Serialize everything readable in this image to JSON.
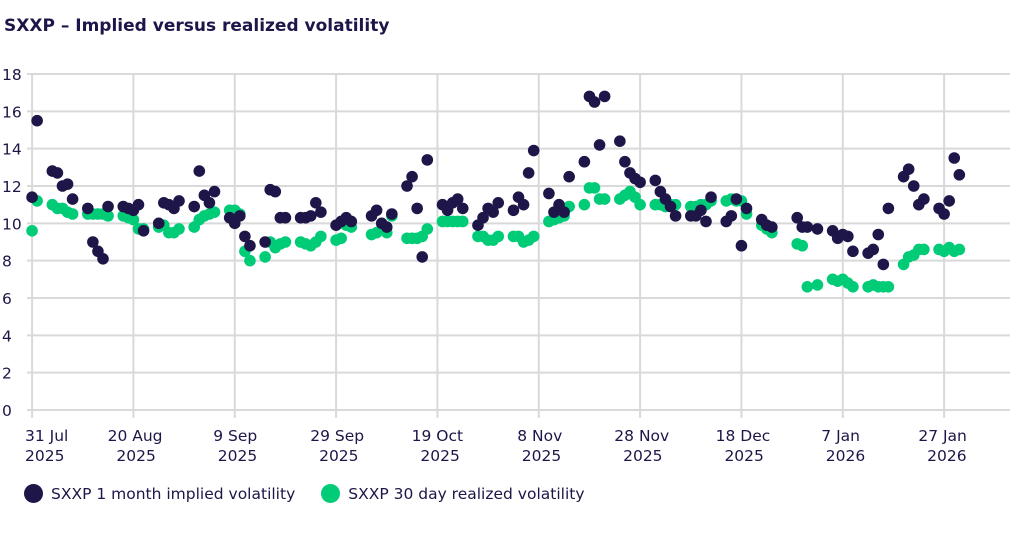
{
  "title": "SXXP – Implied versus realized volatility",
  "colors": {
    "implied": "#1e1548",
    "realized": "#00cc78",
    "grid": "#d9d9d9"
  },
  "chart_data": {
    "type": "scatter",
    "title": "SXXP – Implied versus realized volatility",
    "xlabel": "",
    "ylabel": "",
    "ylim": [
      0,
      18
    ],
    "xlim": [
      "2025-07-30",
      "2026-02-09"
    ],
    "grid": true,
    "legend_placement": "bottom-left",
    "y_ticks": [
      "0",
      "2",
      "4",
      "6",
      "8",
      "10",
      "12",
      "14",
      "16",
      "18"
    ],
    "x_ticks": [
      {
        "date": "2025-07-31",
        "line1": "31 Jul",
        "line2": "2025"
      },
      {
        "date": "2025-08-20",
        "line1": "20 Aug",
        "line2": "2025"
      },
      {
        "date": "2025-09-09",
        "line1": "9 Sep",
        "line2": "2025"
      },
      {
        "date": "2025-09-29",
        "line1": "29 Sep",
        "line2": "2025"
      },
      {
        "date": "2025-10-19",
        "line1": "19 Oct",
        "line2": "2025"
      },
      {
        "date": "2025-11-08",
        "line1": "8 Nov",
        "line2": "2025"
      },
      {
        "date": "2025-11-28",
        "line1": "28 Nov",
        "line2": "2025"
      },
      {
        "date": "2025-12-18",
        "line1": "18 Dec",
        "line2": "2025"
      },
      {
        "date": "2026-01-07",
        "line1": "7 Jan",
        "line2": "2026"
      },
      {
        "date": "2026-01-27",
        "line1": "27 Jan",
        "line2": "2026"
      }
    ],
    "x": [
      "2025-07-31",
      "2025-08-01",
      "2025-08-04",
      "2025-08-05",
      "2025-08-06",
      "2025-08-07",
      "2025-08-08",
      "2025-08-11",
      "2025-08-12",
      "2025-08-13",
      "2025-08-14",
      "2025-08-15",
      "2025-08-18",
      "2025-08-19",
      "2025-08-20",
      "2025-08-21",
      "2025-08-22",
      "2025-08-25",
      "2025-08-26",
      "2025-08-27",
      "2025-08-28",
      "2025-08-29",
      "2025-09-01",
      "2025-09-02",
      "2025-09-03",
      "2025-09-04",
      "2025-09-05",
      "2025-09-08",
      "2025-09-09",
      "2025-09-10",
      "2025-09-11",
      "2025-09-12",
      "2025-09-15",
      "2025-09-16",
      "2025-09-17",
      "2025-09-18",
      "2025-09-19",
      "2025-09-22",
      "2025-09-23",
      "2025-09-24",
      "2025-09-25",
      "2025-09-26",
      "2025-09-29",
      "2025-09-30",
      "2025-10-01",
      "2025-10-02",
      "2025-10-06",
      "2025-10-07",
      "2025-10-08",
      "2025-10-09",
      "2025-10-10",
      "2025-10-13",
      "2025-10-14",
      "2025-10-15",
      "2025-10-16",
      "2025-10-17",
      "2025-10-20",
      "2025-10-21",
      "2025-10-22",
      "2025-10-23",
      "2025-10-24",
      "2025-10-27",
      "2025-10-28",
      "2025-10-29",
      "2025-10-30",
      "2025-10-31",
      "2025-11-03",
      "2025-11-04",
      "2025-11-05",
      "2025-11-06",
      "2025-11-07",
      "2025-11-10",
      "2025-11-11",
      "2025-11-12",
      "2025-11-13",
      "2025-11-14",
      "2025-11-17",
      "2025-11-18",
      "2025-11-19",
      "2025-11-20",
      "2025-11-21",
      "2025-11-24",
      "2025-11-25",
      "2025-11-26",
      "2025-11-27",
      "2025-11-28",
      "2025-12-01",
      "2025-12-02",
      "2025-12-03",
      "2025-12-04",
      "2025-12-05",
      "2025-12-08",
      "2025-12-09",
      "2025-12-10",
      "2025-12-11",
      "2025-12-12",
      "2025-12-15",
      "2025-12-16",
      "2025-12-17",
      "2025-12-18",
      "2025-12-19",
      "2025-12-22",
      "2025-12-23",
      "2025-12-24",
      "2025-12-29",
      "2025-12-30",
      "2025-12-31",
      "2026-01-02",
      "2026-01-05",
      "2026-01-06",
      "2026-01-07",
      "2026-01-08",
      "2026-01-09",
      "2026-01-12",
      "2026-01-13",
      "2026-01-14",
      "2026-01-15",
      "2026-01-16",
      "2026-01-19",
      "2026-01-20",
      "2026-01-21",
      "2026-01-22",
      "2026-01-23",
      "2026-01-26",
      "2026-01-27",
      "2026-01-28",
      "2026-01-29",
      "2026-01-30"
    ],
    "series": [
      {
        "name": "SXXP 1 month implied volatility",
        "color": "#1e1548",
        "values": [
          11.4,
          15.5,
          12.8,
          12.7,
          12.0,
          12.1,
          11.3,
          10.8,
          9.0,
          8.5,
          8.1,
          10.9,
          10.9,
          10.8,
          10.7,
          11.0,
          9.6,
          10.0,
          11.1,
          11.0,
          10.8,
          11.2,
          10.9,
          12.8,
          11.5,
          11.1,
          11.7,
          10.3,
          10.0,
          10.4,
          9.3,
          8.8,
          9.0,
          11.8,
          11.7,
          10.3,
          10.3,
          10.3,
          10.3,
          10.4,
          11.1,
          10.6,
          9.9,
          10.1,
          10.3,
          10.1,
          10.4,
          10.7,
          10.0,
          9.8,
          10.5,
          12.0,
          12.5,
          10.8,
          8.2,
          13.4,
          11.0,
          10.7,
          11.1,
          11.3,
          10.8,
          9.9,
          10.3,
          10.8,
          10.6,
          11.1,
          10.7,
          11.4,
          11.0,
          12.7,
          13.9,
          11.6,
          10.6,
          11.0,
          10.6,
          12.5,
          13.3,
          16.8,
          16.5,
          14.2,
          16.8,
          14.4,
          13.3,
          12.7,
          12.4,
          12.2,
          12.3,
          11.7,
          11.3,
          10.9,
          10.4,
          10.4,
          10.4,
          10.7,
          10.1,
          11.4,
          10.1,
          10.4,
          11.3,
          8.8,
          10.8,
          10.2,
          9.9,
          9.8,
          10.3,
          9.8,
          9.8,
          9.7,
          9.6,
          9.2,
          9.4,
          9.3,
          8.5,
          8.4,
          8.6,
          9.4,
          7.8,
          10.8,
          12.5,
          12.9,
          12.0,
          11.0,
          11.3,
          10.8,
          10.5,
          11.2,
          13.5,
          12.6
        ]
      },
      {
        "name": "SXXP 30 day realized volatility",
        "color": "#00cc78",
        "values": [
          9.6,
          11.2,
          11.0,
          10.8,
          10.8,
          10.6,
          10.5,
          10.5,
          10.5,
          10.5,
          10.5,
          10.4,
          10.4,
          10.3,
          10.2,
          9.7,
          9.7,
          9.8,
          9.9,
          9.5,
          9.5,
          9.7,
          9.8,
          10.2,
          10.4,
          10.5,
          10.6,
          10.7,
          10.7,
          10.5,
          8.5,
          8.0,
          8.2,
          9.0,
          8.7,
          8.9,
          9.0,
          9.0,
          8.9,
          8.8,
          9.0,
          9.3,
          9.1,
          9.2,
          9.9,
          9.8,
          9.4,
          9.5,
          9.7,
          9.5,
          10.4,
          9.2,
          9.2,
          9.2,
          9.3,
          9.7,
          10.1,
          10.1,
          10.1,
          10.1,
          10.1,
          9.3,
          9.3,
          9.1,
          9.1,
          9.3,
          9.3,
          9.3,
          9.0,
          9.1,
          9.3,
          10.1,
          10.2,
          10.3,
          10.4,
          10.9,
          11.0,
          11.9,
          11.9,
          11.3,
          11.3,
          11.3,
          11.5,
          11.7,
          11.4,
          11.0,
          11.0,
          11.0,
          10.9,
          11.0,
          11.0,
          10.9,
          10.9,
          11.0,
          11.0,
          11.2,
          11.2,
          11.3,
          11.2,
          11.2,
          10.5,
          9.9,
          9.7,
          9.5,
          8.9,
          8.8,
          6.6,
          6.7,
          7.0,
          6.9,
          7.0,
          6.8,
          6.6,
          6.6,
          6.7,
          6.6,
          6.6,
          6.6,
          7.8,
          8.2,
          8.3,
          8.6,
          8.6,
          8.6,
          8.5,
          8.7,
          8.5,
          8.6
        ]
      }
    ]
  }
}
